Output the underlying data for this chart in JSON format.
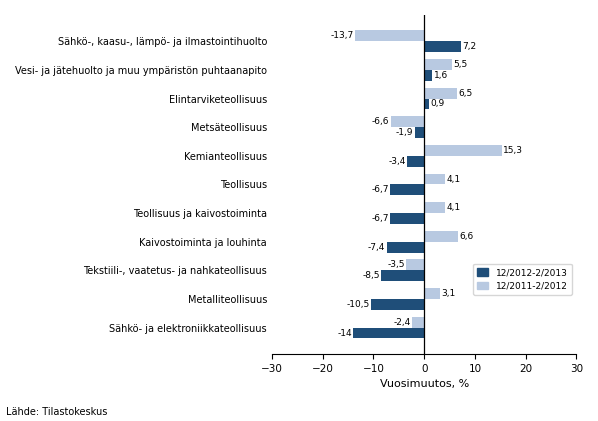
{
  "categories": [
    "Sähkö-, kaasu-, lämpö- ja ilmastointihuolto",
    "Vesi- ja jätehuolto ja muu ympäristön puhtaanapito",
    "Elintarviketeollisuus",
    "Metsäteollisuus",
    "Kemianteollisuus",
    "Teollisuus",
    "Teollisuus ja kaivostoiminta",
    "Kaivostoiminta ja louhinta",
    "Tekstiili-, vaatetus- ja nahkateollisuus",
    "Metalliteollisuus",
    "Sähkö- ja elektroniikkateollisuus"
  ],
  "series1": [
    7.2,
    1.6,
    0.9,
    -1.9,
    -3.4,
    -6.7,
    -6.7,
    -7.4,
    -8.5,
    -10.5,
    -14.0
  ],
  "series2": [
    -13.7,
    5.5,
    6.5,
    -6.6,
    15.3,
    4.1,
    4.1,
    6.6,
    -3.5,
    3.1,
    -2.4
  ],
  "color1": "#1F4E79",
  "color2": "#B8C9E1",
  "legend1": "12/2012-2/2013",
  "legend2": "12/2011-2/2012",
  "xlabel": "Vuosimuutos, %",
  "source": "Lähde: Tilastokeskus",
  "xlim": [
    -30,
    30
  ],
  "xticks": [
    -30,
    -20,
    -10,
    0,
    10,
    20,
    30
  ]
}
